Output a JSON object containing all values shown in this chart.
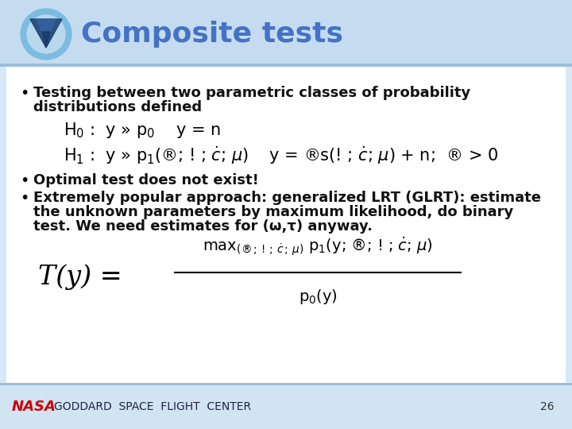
{
  "title": "Composite tests",
  "title_color": "#4472C4",
  "title_fontsize": 26,
  "bg_color": "#EAF2FA",
  "header_bg_color": "#C8DFF0",
  "footer_bg_color": "#D8EAF5",
  "bullet1_line1": "Testing between two parametric classes of probability",
  "bullet1_line2": "distributions defined",
  "bullet2": "Optimal test does not exist!",
  "bullet3_line1": "Extremely popular approach: generalized LRT (GLRT): estimate",
  "bullet3_line2": "the unknown parameters by maximum likelihood, do binary",
  "bullet3_line3": "test. We need estimates for (ω,τ) anyway.",
  "footer_text": "GODDARD  SPACE  FLIGHT  CENTER",
  "page_num": "26",
  "nasa_color": "#CC0000",
  "text_color": "#111111",
  "bullet_fontsize": 13,
  "eq_fontsize": 15,
  "footer_fontsize": 10
}
